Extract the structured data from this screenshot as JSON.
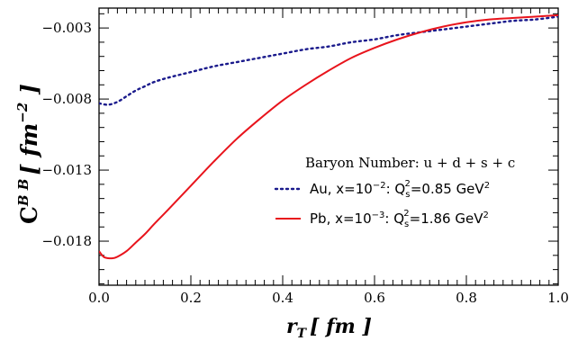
{
  "chart_data": {
    "type": "line",
    "ylabel": "C",
    "ylabel_superscript": "B B",
    "ylabel_unit": "[ fm",
    "ylabel_unit_exp": "−2",
    "ylabel_unit_close": " ]",
    "xlabel": "r",
    "xlabel_sub": "T",
    "xlabel_unit": "[ fm ]",
    "xlim": [
      0.0,
      1.0
    ],
    "ylim": [
      -0.0211,
      -0.0016
    ],
    "x_ticks": [
      0.0,
      0.2,
      0.4,
      0.6,
      0.8,
      1.0
    ],
    "x_tick_labels": [
      "0.0",
      "0.2",
      "0.4",
      "0.6",
      "0.8",
      "1.0"
    ],
    "y_ticks": [
      -0.003,
      -0.008,
      -0.013,
      -0.018
    ],
    "y_tick_labels": [
      "−0.003",
      "−0.008",
      "−0.013",
      "−0.018"
    ],
    "grid": false,
    "legend": {
      "placement": "center-right",
      "title": "Baryon Number: u + d + s + c",
      "entries": [
        {
          "prefix": "Au, x=10",
          "prefix_exp": "−2",
          "mid": ":   Q",
          "mid_sub": "s",
          "mid_sup": "2",
          "suffix": "=0.85 GeV",
          "suffix_exp": "2"
        },
        {
          "prefix": "Pb, x=10",
          "prefix_exp": "−3",
          "mid": ":   Q",
          "mid_sub": "s",
          "mid_sup": "2",
          "suffix": "=1.86 GeV",
          "suffix_exp": "2"
        }
      ]
    },
    "series": [
      {
        "style": "dotted",
        "color": "#1a1a8c",
        "x": [
          0.0,
          0.02,
          0.04,
          0.06,
          0.08,
          0.1,
          0.12,
          0.15,
          0.2,
          0.25,
          0.3,
          0.35,
          0.4,
          0.45,
          0.5,
          0.55,
          0.6,
          0.65,
          0.7,
          0.75,
          0.8,
          0.85,
          0.9,
          0.95,
          1.0
        ],
        "y": [
          -0.0083,
          -0.0084,
          -0.0082,
          -0.0078,
          -0.0074,
          -0.0071,
          -0.0068,
          -0.0065,
          -0.0061,
          -0.0057,
          -0.0054,
          -0.0051,
          -0.0048,
          -0.0045,
          -0.0043,
          -0.004,
          -0.0038,
          -0.0035,
          -0.0033,
          -0.0031,
          -0.0029,
          -0.0027,
          -0.0025,
          -0.0024,
          -0.0022
        ]
      },
      {
        "style": "solid",
        "color": "#e8141c",
        "x": [
          0.0,
          0.01,
          0.02,
          0.03,
          0.04,
          0.06,
          0.08,
          0.1,
          0.12,
          0.15,
          0.2,
          0.25,
          0.3,
          0.35,
          0.4,
          0.45,
          0.5,
          0.55,
          0.6,
          0.65,
          0.7,
          0.75,
          0.8,
          0.85,
          0.9,
          0.95,
          1.0
        ],
        "y": [
          -0.0187,
          -0.0191,
          -0.0192,
          -0.0192,
          -0.0191,
          -0.0187,
          -0.0181,
          -0.0175,
          -0.0168,
          -0.0158,
          -0.0141,
          -0.0124,
          -0.0108,
          -0.0094,
          -0.0081,
          -0.007,
          -0.006,
          -0.0051,
          -0.0044,
          -0.0038,
          -0.0033,
          -0.0029,
          -0.0026,
          -0.0024,
          -0.0023,
          -0.0022,
          -0.0021
        ]
      }
    ]
  }
}
